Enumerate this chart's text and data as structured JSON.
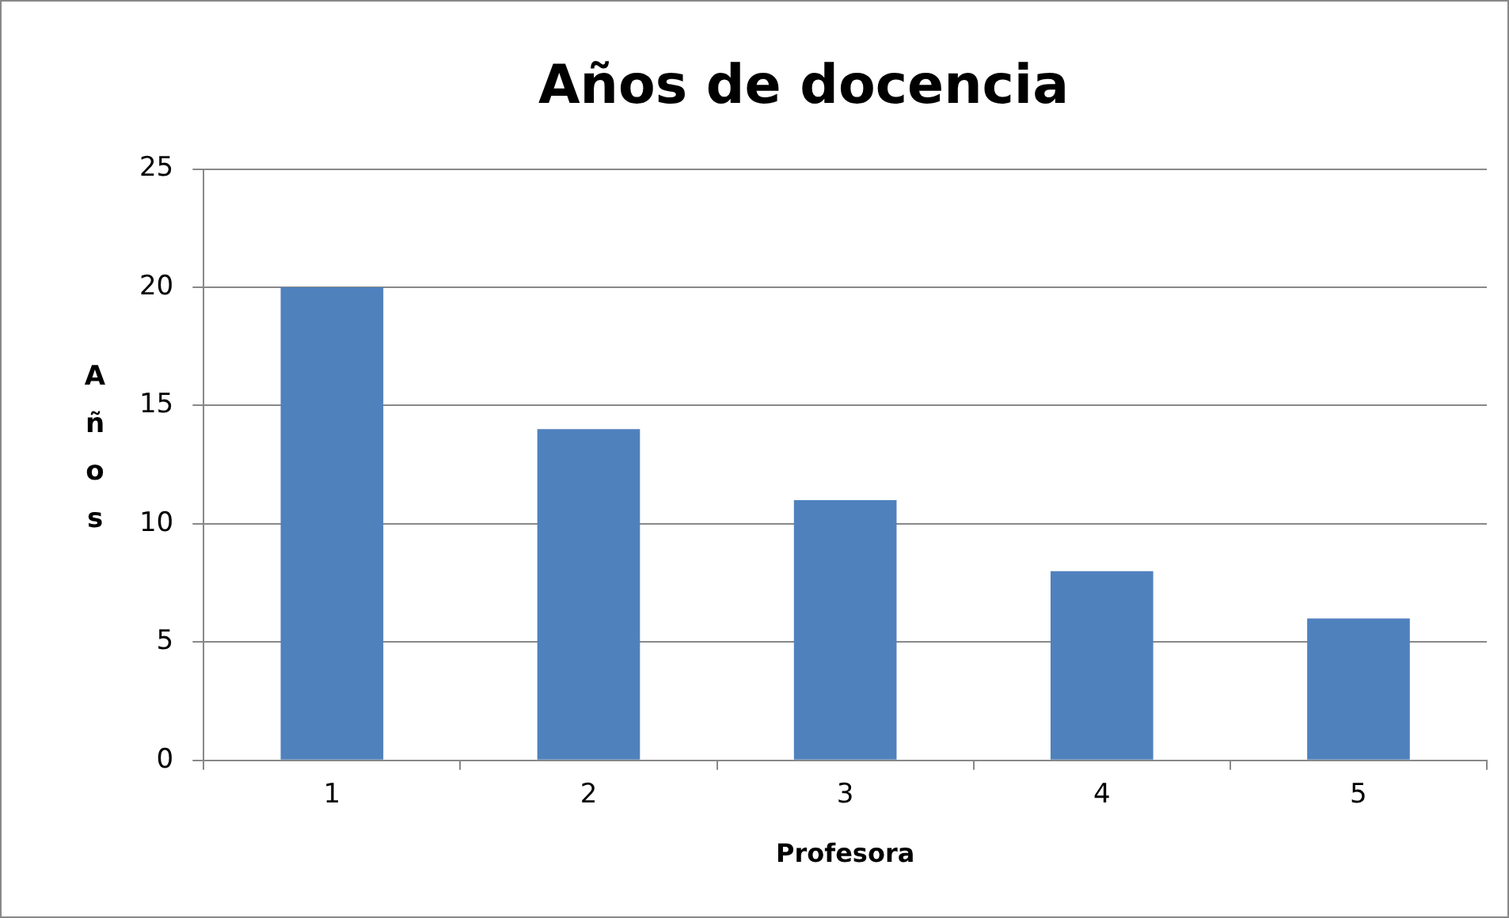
{
  "chart_data": {
    "type": "bar",
    "title": "Años de docencia",
    "xlabel": "Profesora",
    "ylabel": "Años",
    "categories": [
      "1",
      "2",
      "3",
      "4",
      "5"
    ],
    "values": [
      20,
      14,
      11,
      8,
      6
    ],
    "color": "#4f81bd",
    "ylim": [
      0,
      25
    ],
    "yticks": [
      0,
      5,
      10,
      15,
      20,
      25
    ],
    "grid": "y",
    "legend": false
  }
}
